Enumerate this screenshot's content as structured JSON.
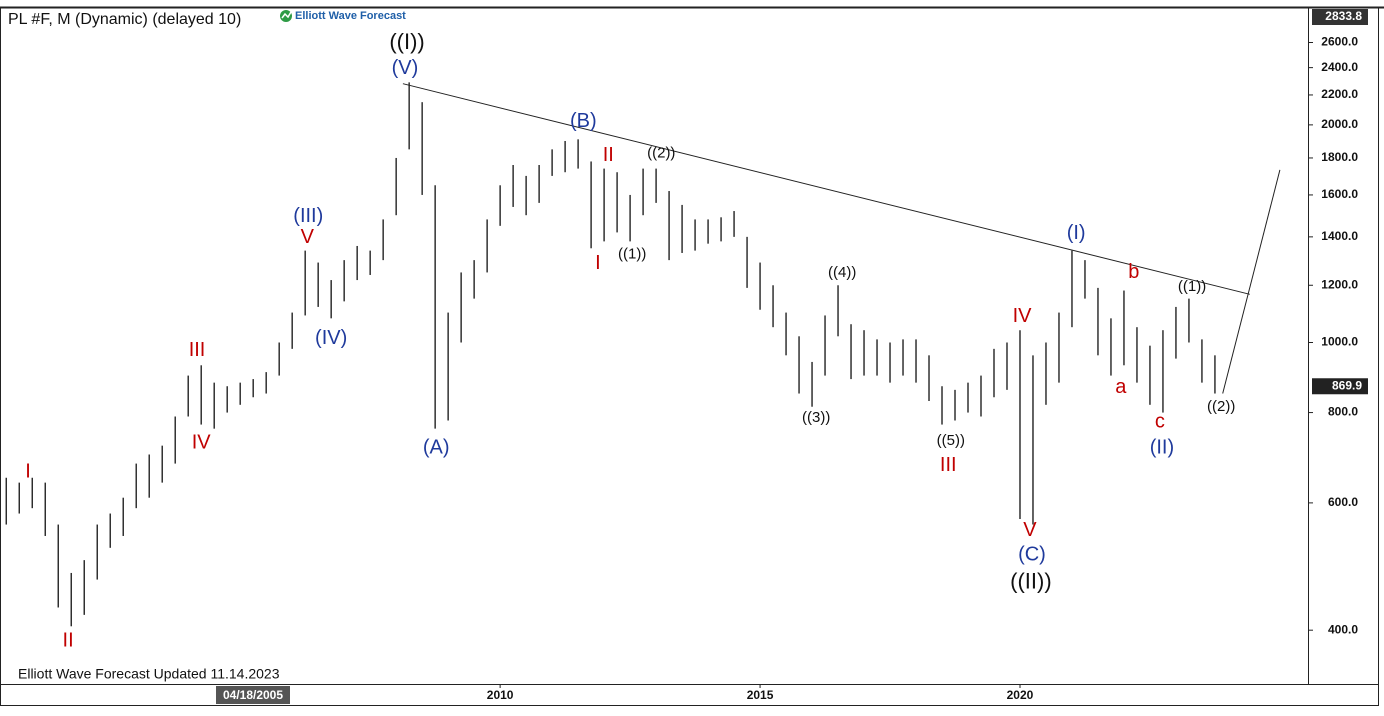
{
  "chart_data": {
    "type": "range",
    "title": "PL #F, M (Dynamic) (delayed 10)",
    "brand": "Elliott Wave Forecast",
    "footer": "Elliott Wave Forecast Updated 11.14.2023",
    "crosshair_date": "04/18/2005",
    "log_scale": true,
    "color": "#111111",
    "xlim": [
      2000.38,
      2025.54
    ],
    "xticks": [
      2010,
      2015,
      2020
    ],
    "ylim": [
      337,
      2902
    ],
    "yticks": [
      {
        "value": 400,
        "label": "400.0"
      },
      {
        "value": 600,
        "label": "600.0"
      },
      {
        "value": 800,
        "label": "800.0"
      },
      {
        "value": 1000,
        "label": "1000.0"
      },
      {
        "value": 1200,
        "label": "1200.0"
      },
      {
        "value": 1400,
        "label": "1400.0"
      },
      {
        "value": 1600,
        "label": "1600.0"
      },
      {
        "value": 1800,
        "label": "1800.0"
      },
      {
        "value": 2000,
        "label": "2000.0"
      },
      {
        "value": 2200,
        "label": "2200.0"
      },
      {
        "value": 2400,
        "label": "2400.0"
      },
      {
        "value": 2600,
        "label": "2600.0"
      }
    ],
    "last_price": 869.9,
    "scale_top": 2833.8,
    "x": [
      2000.5,
      2000.75,
      2001,
      2001.25,
      2001.5,
      2001.75,
      2002,
      2002.25,
      2002.5,
      2002.75,
      2003,
      2003.25,
      2003.5,
      2003.75,
      2004,
      2004.25,
      2004.5,
      2004.75,
      2005,
      2005.25,
      2005.5,
      2005.75,
      2006,
      2006.25,
      2006.5,
      2006.75,
      2007,
      2007.25,
      2007.5,
      2007.75,
      2008,
      2008.25,
      2008.5,
      2008.75,
      2009,
      2009.25,
      2009.5,
      2009.75,
      2010,
      2010.25,
      2010.5,
      2010.75,
      2011,
      2011.25,
      2011.5,
      2011.75,
      2012,
      2012.25,
      2012.5,
      2012.75,
      2013,
      2013.25,
      2013.5,
      2013.75,
      2014,
      2014.25,
      2014.5,
      2014.75,
      2015,
      2015.25,
      2015.5,
      2015.75,
      2016,
      2016.25,
      2016.5,
      2016.75,
      2017,
      2017.25,
      2017.5,
      2017.75,
      2018,
      2018.25,
      2018.5,
      2018.75,
      2019,
      2019.25,
      2019.5,
      2019.75,
      2020,
      2020.25,
      2020.5,
      2020.75,
      2021,
      2021.25,
      2021.5,
      2021.75,
      2022,
      2022.25,
      2022.5,
      2022.75,
      2023,
      2023.25,
      2023.5,
      2023.75
    ],
    "high": [
      650,
      640,
      650,
      640,
      560,
      480,
      500,
      560,
      580,
      610,
      680,
      700,
      720,
      790,
      900,
      930,
      880,
      870,
      880,
      890,
      910,
      1000,
      1100,
      1340,
      1290,
      1220,
      1300,
      1360,
      1340,
      1480,
      1800,
      2290,
      2150,
      1650,
      1100,
      1250,
      1300,
      1480,
      1650,
      1760,
      1700,
      1760,
      1850,
      1900,
      1910,
      1780,
      1740,
      1720,
      1600,
      1740,
      1740,
      1620,
      1550,
      1480,
      1480,
      1490,
      1520,
      1400,
      1290,
      1200,
      1100,
      1020,
      940,
      1090,
      1200,
      1060,
      1040,
      1010,
      1000,
      1010,
      1010,
      960,
      870,
      860,
      880,
      900,
      980,
      1000,
      1040,
      960,
      1000,
      1100,
      1340,
      1300,
      1190,
      1080,
      1180,
      1050,
      990,
      1040,
      1120,
      1150,
      1010,
      960
    ],
    "low": [
      560,
      580,
      590,
      540,
      430,
      405,
      420,
      470,
      520,
      540,
      590,
      610,
      640,
      680,
      790,
      770,
      760,
      800,
      820,
      840,
      850,
      900,
      980,
      1090,
      1120,
      1080,
      1140,
      1220,
      1240,
      1300,
      1500,
      1850,
      1600,
      760,
      780,
      1000,
      1150,
      1250,
      1450,
      1540,
      1500,
      1560,
      1700,
      1720,
      1740,
      1350,
      1380,
      1420,
      1380,
      1500,
      1560,
      1300,
      1330,
      1340,
      1370,
      1380,
      1400,
      1190,
      1110,
      1050,
      960,
      850,
      815,
      900,
      1020,
      890,
      900,
      900,
      880,
      900,
      880,
      830,
      770,
      780,
      800,
      790,
      840,
      860,
      570,
      560,
      820,
      880,
      1050,
      1150,
      960,
      900,
      930,
      880,
      820,
      800,
      950,
      1000,
      880,
      850
    ],
    "trendline": {
      "x": [
        2008.13,
        2024.42
      ],
      "values": [
        2280,
        1166
      ]
    },
    "projection": {
      "x": [
        2023.9,
        2025.0
      ],
      "values": [
        850,
        1733
      ]
    },
    "annotations": [
      {
        "text": "((I))",
        "x": 2008.21,
        "y": 2593,
        "color": "#111111"
      },
      {
        "text": "(V)",
        "x": 2008.17,
        "y": 2393,
        "color": "#1f3a9c"
      },
      {
        "text": "(III)",
        "x": 2006.31,
        "y": 1493,
        "color": "#1f3a9c"
      },
      {
        "text": "V",
        "x": 2006.29,
        "y": 1396,
        "color": "#c00000"
      },
      {
        "text": "(IV)",
        "x": 2006.75,
        "y": 1012,
        "color": "#1f3a9c"
      },
      {
        "text": "III",
        "x": 2004.17,
        "y": 974,
        "color": "#c00000"
      },
      {
        "text": "IV",
        "x": 2004.25,
        "y": 726,
        "color": "#c00000"
      },
      {
        "text": "I",
        "x": 2000.92,
        "y": 662,
        "color": "#c00000"
      },
      {
        "text": "II",
        "x": 2001.69,
        "y": 386,
        "color": "#c00000"
      },
      {
        "text": "(A)",
        "x": 2008.77,
        "y": 714,
        "color": "#1f3a9c"
      },
      {
        "text": "(B)",
        "x": 2011.6,
        "y": 2021,
        "color": "#1f3a9c"
      },
      {
        "text": "II",
        "x": 2012.08,
        "y": 1813,
        "color": "#c00000"
      },
      {
        "text": "((2))",
        "x": 2013.1,
        "y": 1825,
        "color": "#111111"
      },
      {
        "text": "I",
        "x": 2011.88,
        "y": 1285,
        "color": "#c00000"
      },
      {
        "text": "((1))",
        "x": 2012.54,
        "y": 1323,
        "color": "#111111"
      },
      {
        "text": "((4))",
        "x": 2016.58,
        "y": 1248,
        "color": "#111111"
      },
      {
        "text": "((3))",
        "x": 2016.08,
        "y": 786,
        "color": "#111111"
      },
      {
        "text": "((5))",
        "x": 2018.67,
        "y": 731,
        "color": "#111111"
      },
      {
        "text": "III",
        "x": 2018.62,
        "y": 675,
        "color": "#c00000"
      },
      {
        "text": "IV",
        "x": 2020.04,
        "y": 1085,
        "color": "#c00000"
      },
      {
        "text": "V",
        "x": 2020.19,
        "y": 549,
        "color": "#c00000"
      },
      {
        "text": "(C)",
        "x": 2020.23,
        "y": 508,
        "color": "#1f3a9c"
      },
      {
        "text": "((II))",
        "x": 2020.21,
        "y": 465,
        "color": "#111111"
      },
      {
        "text": "(I)",
        "x": 2021.08,
        "y": 1414,
        "color": "#1f3a9c"
      },
      {
        "text": "b",
        "x": 2022.19,
        "y": 1248,
        "color": "#c00000"
      },
      {
        "text": "a",
        "x": 2021.94,
        "y": 866,
        "color": "#c00000"
      },
      {
        "text": "c",
        "x": 2022.69,
        "y": 776,
        "color": "#c00000"
      },
      {
        "text": "(II)",
        "x": 2022.73,
        "y": 714,
        "color": "#1f3a9c"
      },
      {
        "text": "((1))",
        "x": 2023.31,
        "y": 1194,
        "color": "#111111"
      },
      {
        "text": "((2))",
        "x": 2023.87,
        "y": 814,
        "color": "#111111"
      }
    ]
  }
}
